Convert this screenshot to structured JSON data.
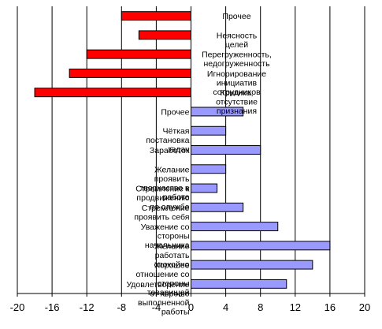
{
  "chart_data": {
    "type": "bar",
    "orientation": "horizontal",
    "categories": [
      "Прочее",
      "Неясность целей",
      "Перегруженность, недогруженность",
      "Игнорирование инициатив сотрудников",
      "Критика, отсутствие признания",
      "Прочее",
      "Чёткая постановка задач",
      "Заработок",
      "Желание проявить творчество в работе",
      "Стремление к продвижению по службе",
      "Стремление проявить себя",
      "Уважение со стороны начальника",
      "Желание работать спокойно",
      "Хорошее отношение со стороны товарищей",
      "Удовлетворение от хорошо выполненной работы"
    ],
    "values": [
      -8,
      -6,
      -12,
      -14,
      -18,
      6,
      4,
      8,
      4,
      3,
      6,
      10,
      16,
      14,
      11
    ],
    "colors": {
      "negative": "#ff0000",
      "positive": "#9999ff",
      "outline": "#000000",
      "grid": "#000000"
    },
    "xlim": [
      -20,
      20
    ],
    "xticks": [
      -20,
      -16,
      -12,
      -8,
      -4,
      0,
      4,
      8,
      12,
      16,
      20
    ],
    "grid": "vertical",
    "legend": "none"
  }
}
